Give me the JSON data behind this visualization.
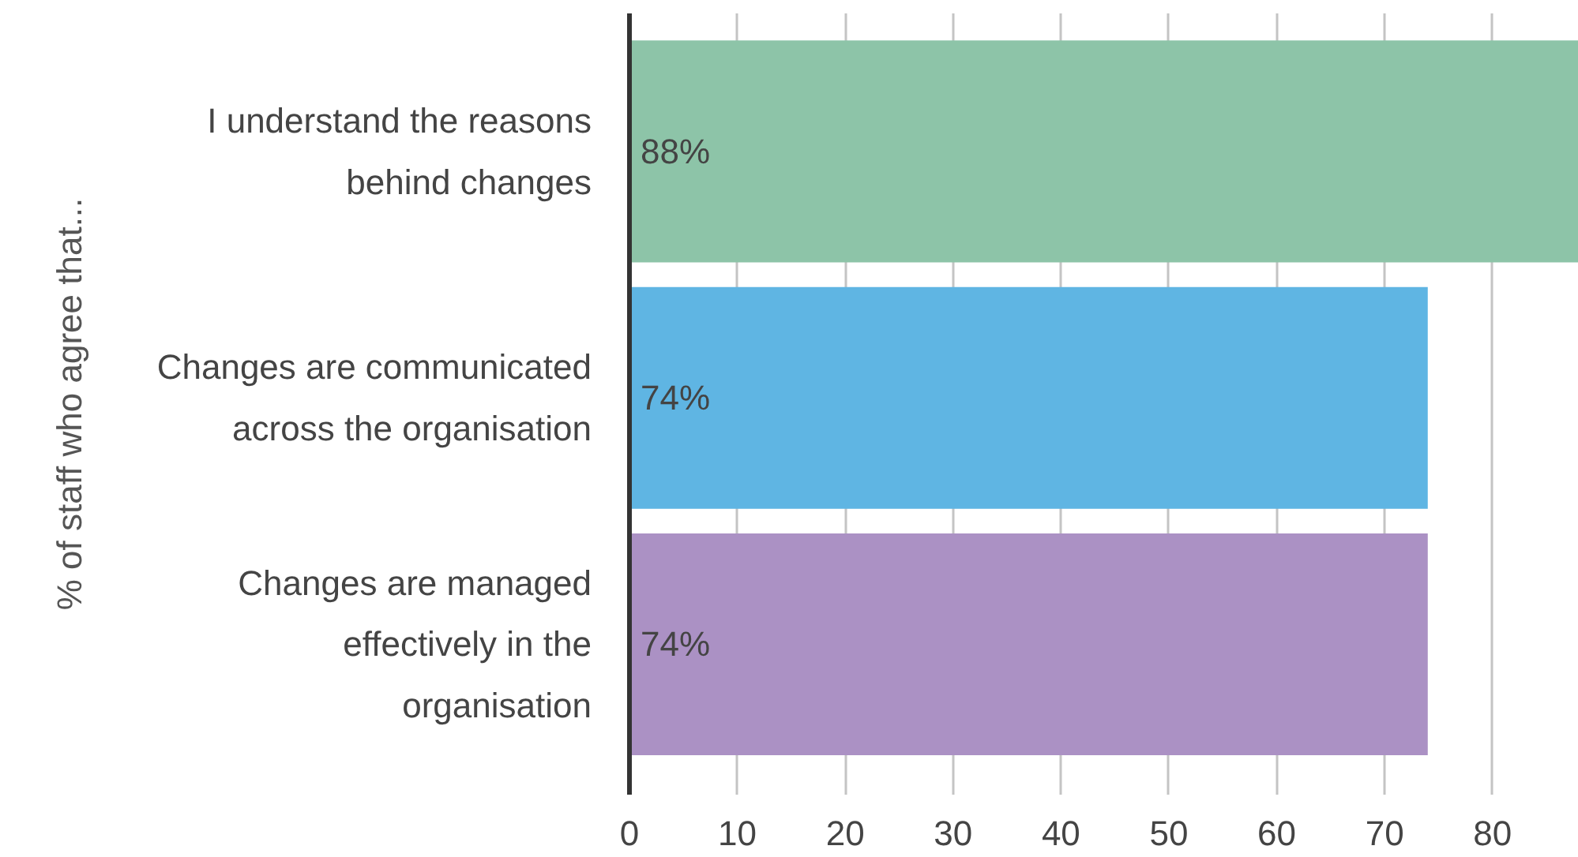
{
  "chart_data": {
    "type": "bar",
    "orientation": "horizontal",
    "ylabel": "% of staff who agree that...",
    "categories": [
      "I understand the reasons behind changes",
      "Changes are communicated across the organisation",
      "Changes are managed effectively in the organisation"
    ],
    "values": [
      88,
      74,
      74
    ],
    "colors": [
      "#8dc4a8",
      "#5fb5e3",
      "#ab91c4"
    ],
    "value_labels": [
      "88%",
      "74%",
      "74%"
    ],
    "xlim": [
      0,
      88
    ],
    "xticks": [
      0,
      10,
      20,
      30,
      40,
      50,
      60,
      70,
      80
    ],
    "grid": "x"
  }
}
